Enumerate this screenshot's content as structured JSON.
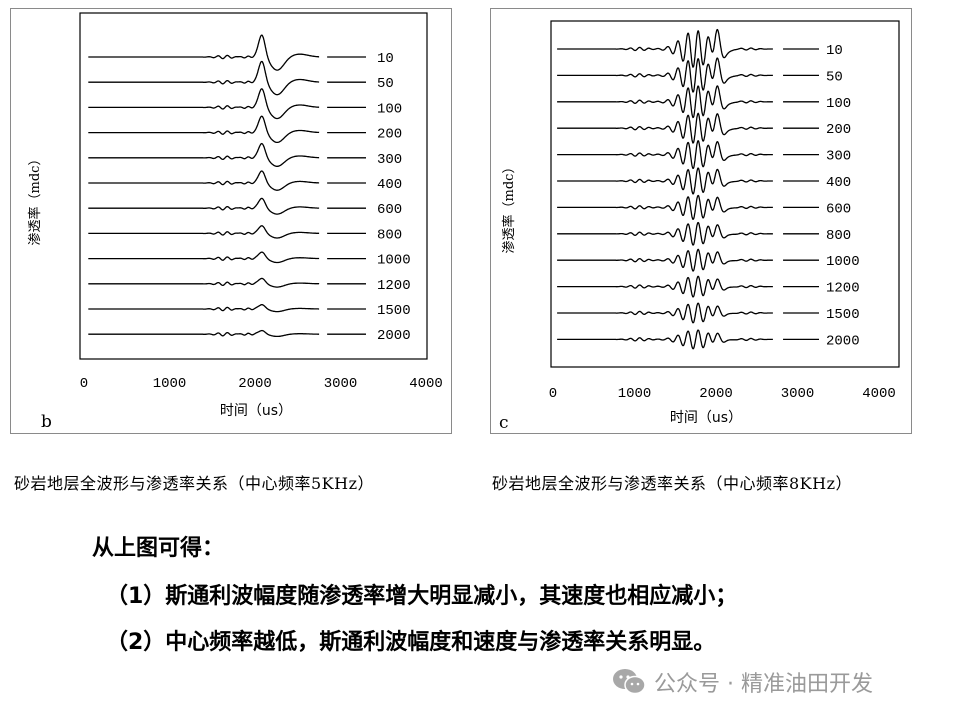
{
  "chart_data": [
    {
      "panel_label": "b",
      "type": "line",
      "xlabel": "时间（us）",
      "ylabel": "渗透率（mdc）",
      "xlim": [
        0,
        4000
      ],
      "xticks": [
        "0",
        "1000",
        "2000",
        "3000",
        "4000"
      ],
      "center_frequency_khz": 5,
      "stoneley_arrival_us": 2100,
      "series": [
        {
          "name": "10",
          "stoneley_amplitude": 1.0
        },
        {
          "name": "50",
          "stoneley_amplitude": 0.95
        },
        {
          "name": "100",
          "stoneley_amplitude": 0.85
        },
        {
          "name": "200",
          "stoneley_amplitude": 0.75
        },
        {
          "name": "300",
          "stoneley_amplitude": 0.65
        },
        {
          "name": "400",
          "stoneley_amplitude": 0.55
        },
        {
          "name": "600",
          "stoneley_amplitude": 0.45
        },
        {
          "name": "800",
          "stoneley_amplitude": 0.35
        },
        {
          "name": "1000",
          "stoneley_amplitude": 0.3
        },
        {
          "name": "1200",
          "stoneley_amplitude": 0.25
        },
        {
          "name": "1500",
          "stoneley_amplitude": 0.2
        },
        {
          "name": "2000",
          "stoneley_amplitude": 0.17
        }
      ]
    },
    {
      "panel_label": "c",
      "type": "line",
      "xlabel": "时间（us）",
      "ylabel": "渗透率（mdc）",
      "xlim": [
        0,
        4000
      ],
      "xticks": [
        "0",
        "1000",
        "2000",
        "3000",
        "4000"
      ],
      "center_frequency_khz": 8,
      "stoneley_arrival_us": 2000,
      "series": [
        {
          "name": "10",
          "stoneley_amplitude": 1.0
        },
        {
          "name": "50",
          "stoneley_amplitude": 0.88
        },
        {
          "name": "100",
          "stoneley_amplitude": 0.8
        },
        {
          "name": "200",
          "stoneley_amplitude": 0.72
        },
        {
          "name": "300",
          "stoneley_amplitude": 0.64
        },
        {
          "name": "400",
          "stoneley_amplitude": 0.56
        },
        {
          "name": "600",
          "stoneley_amplitude": 0.48
        },
        {
          "name": "800",
          "stoneley_amplitude": 0.42
        },
        {
          "name": "1000",
          "stoneley_amplitude": 0.38
        },
        {
          "name": "1200",
          "stoneley_amplitude": 0.34
        },
        {
          "name": "1500",
          "stoneley_amplitude": 0.3
        },
        {
          "name": "2000",
          "stoneley_amplitude": 0.26
        }
      ]
    }
  ],
  "captions": {
    "b": "砂岩地层全波形与渗透率关系（中心频率5KHz）",
    "c": "砂岩地层全波形与渗透率关系（中心频率8KHz）"
  },
  "conclusion": {
    "title": "从上图可得：",
    "point1": "（1）斯通利波幅度随渗透率增大明显减小，其速度也相应减小；",
    "point2": "（2）中心频率越低，斯通利波幅度和速度与渗透率关系明显。"
  },
  "watermark": {
    "icon": "wechat-icon",
    "text": "公众号 · 精准油田开发"
  }
}
